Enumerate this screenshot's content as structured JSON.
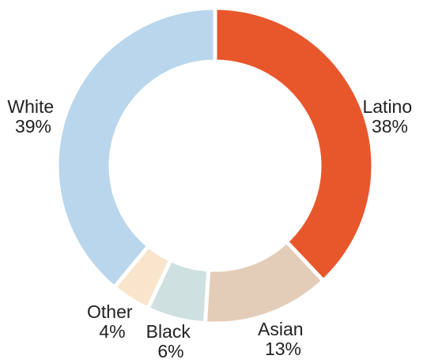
{
  "chart_data": {
    "type": "pie",
    "donut": true,
    "title": "",
    "categories": [
      "Latino",
      "Asian",
      "Black",
      "Other",
      "White"
    ],
    "values": [
      38,
      13,
      6,
      4,
      39
    ],
    "value_labels": [
      "38%",
      "13%",
      "6%",
      "4%",
      "39%"
    ],
    "colors": [
      "#e8572b",
      "#e3cdb8",
      "#cfe0e1",
      "#f9e5cc",
      "#b9d6ec"
    ],
    "start": "12 o'clock",
    "direction": "clockwise",
    "legend": "none"
  }
}
